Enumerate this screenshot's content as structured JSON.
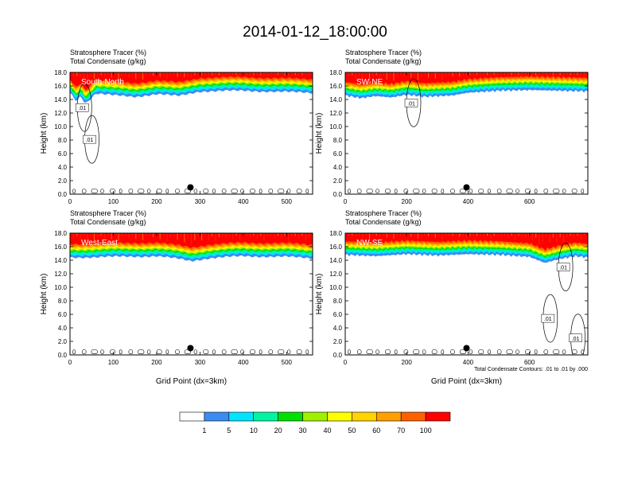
{
  "title": "2014-01-12_18:00:00",
  "field_labels": [
    "Stratosphere Tracer   (%)",
    "Total Condensate   (g/kg)"
  ],
  "y_axis_label": "Height (km)",
  "x_axis_label": "Grid Point (dx=3km)",
  "contour_note": "Total Condensate Contours: .01 to .01 by .000",
  "contour_label": ".01",
  "colorbar": {
    "colors": [
      "#ffffff",
      "#3b8cf0",
      "#00e5ff",
      "#00f5a0",
      "#00e000",
      "#a0f000",
      "#ffff00",
      "#ffd400",
      "#ffa000",
      "#ff6000",
      "#ff0000"
    ],
    "labels": [
      "1",
      "5",
      "10",
      "20",
      "30",
      "40",
      "50",
      "60",
      "70",
      "100"
    ]
  },
  "chart_data": [
    {
      "type": "heatmap",
      "name": "South-North",
      "title": "South-North",
      "xlim": [
        0,
        560
      ],
      "xticks": [
        0,
        100,
        200,
        300,
        400,
        500
      ],
      "ylim": [
        0,
        18
      ],
      "yticks": [
        "0.0",
        "2.0",
        "4.0",
        "6.0",
        "8.0",
        "10.0",
        "12.0",
        "14.0",
        "16.0",
        "18.0"
      ],
      "tropopause_km": [
        [
          0,
          15.0
        ],
        [
          15,
          13.8
        ],
        [
          25,
          14.6
        ],
        [
          35,
          13.4
        ],
        [
          60,
          14.9
        ],
        [
          100,
          14.6
        ],
        [
          150,
          14.4
        ],
        [
          200,
          14.8
        ],
        [
          250,
          14.5
        ],
        [
          300,
          15.2
        ],
        [
          400,
          15.3
        ],
        [
          500,
          15.1
        ],
        [
          560,
          15.0
        ]
      ],
      "marker": [
        278,
        1.0
      ],
      "contour_labels_at": [
        [
          28,
          12.8
        ],
        [
          45,
          8.1
        ]
      ]
    },
    {
      "type": "heatmap",
      "name": "SW-NE",
      "title": "SW-NE",
      "xlim": [
        0,
        790
      ],
      "xticks": [
        0,
        200,
        400,
        600
      ],
      "ylim": [
        0,
        18
      ],
      "yticks": [
        "0.0",
        "2.0",
        "4.0",
        "6.0",
        "8.0",
        "10.0",
        "12.0",
        "14.0",
        "16.0",
        "18.0"
      ],
      "tropopause_km": [
        [
          0,
          14.6
        ],
        [
          50,
          14.2
        ],
        [
          100,
          14.5
        ],
        [
          150,
          14.3
        ],
        [
          200,
          14.7
        ],
        [
          260,
          14.4
        ],
        [
          350,
          14.6
        ],
        [
          400,
          15.0
        ],
        [
          500,
          15.3
        ],
        [
          600,
          15.4
        ],
        [
          700,
          15.3
        ],
        [
          790,
          15.2
        ]
      ],
      "marker": [
        395,
        1.0
      ],
      "contour_labels_at": [
        [
          215,
          13.5
        ]
      ]
    },
    {
      "type": "heatmap",
      "name": "West-East",
      "title": "West-East",
      "xlim": [
        0,
        560
      ],
      "xticks": [
        0,
        100,
        200,
        300,
        400,
        500
      ],
      "ylim": [
        0,
        18
      ],
      "yticks": [
        "0.0",
        "2.0",
        "4.0",
        "6.0",
        "8.0",
        "10.0",
        "12.0",
        "14.0",
        "16.0",
        "18.0"
      ],
      "tropopause_km": [
        [
          0,
          14.4
        ],
        [
          100,
          14.5
        ],
        [
          200,
          14.6
        ],
        [
          250,
          14.2
        ],
        [
          280,
          13.9
        ],
        [
          320,
          14.3
        ],
        [
          400,
          14.6
        ],
        [
          500,
          14.5
        ],
        [
          560,
          14.3
        ]
      ],
      "marker": [
        278,
        1.0
      ],
      "contour_labels_at": []
    },
    {
      "type": "heatmap",
      "name": "NW-SE",
      "title": "NW-SE",
      "xlim": [
        0,
        790
      ],
      "xticks": [
        0,
        200,
        400,
        600
      ],
      "ylim": [
        0,
        18
      ],
      "yticks": [
        "0.0",
        "2.0",
        "4.0",
        "6.0",
        "8.0",
        "10.0",
        "12.0",
        "14.0",
        "16.0",
        "18.0"
      ],
      "tropopause_km": [
        [
          0,
          14.8
        ],
        [
          100,
          14.6
        ],
        [
          200,
          14.9
        ],
        [
          300,
          14.7
        ],
        [
          400,
          14.9
        ],
        [
          500,
          14.8
        ],
        [
          600,
          14.5
        ],
        [
          650,
          13.6
        ],
        [
          700,
          14.2
        ],
        [
          750,
          14.6
        ],
        [
          790,
          14.4
        ]
      ],
      "marker": [
        395,
        1.0
      ],
      "contour_labels_at": [
        [
          660,
          5.4
        ],
        [
          710,
          13.0
        ],
        [
          750,
          2.5
        ]
      ]
    }
  ]
}
